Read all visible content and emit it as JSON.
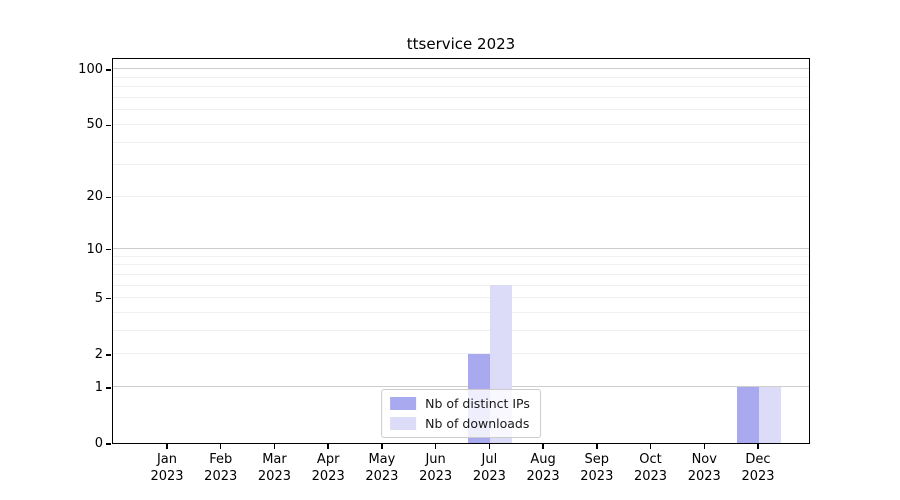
{
  "chart_data": {
    "type": "bar",
    "title": "ttservice 2023",
    "categories": [
      "Jan",
      "Feb",
      "Mar",
      "Apr",
      "May",
      "Jun",
      "Jul",
      "Aug",
      "Sep",
      "Oct",
      "Nov",
      "Dec"
    ],
    "category_year": "2023",
    "series": [
      {
        "name": "Nb of distinct IPs",
        "color": "#a9a9f0",
        "values": [
          0,
          0,
          0,
          0,
          0,
          0,
          2,
          0,
          0,
          0,
          0,
          1
        ]
      },
      {
        "name": "Nb of downloads",
        "color": "#dcdcf8",
        "values": [
          0,
          0,
          0,
          0,
          0,
          0,
          6,
          0,
          0,
          0,
          0,
          1
        ]
      }
    ],
    "yscale": "log1p",
    "ylim": [
      0,
      116
    ],
    "ytick_values": [
      0,
      1,
      2,
      5,
      10,
      20,
      50,
      100
    ],
    "ytick_labels": [
      "0",
      "1",
      "2",
      "5",
      "10",
      "20",
      "50",
      "100"
    ],
    "major_grid_values": [
      1,
      10,
      100
    ],
    "minor_grid_values": [
      2,
      3,
      4,
      5,
      6,
      7,
      8,
      9,
      20,
      30,
      40,
      50,
      60,
      70,
      80,
      90
    ],
    "grid": true,
    "legend_position": "lower center",
    "colors": {
      "spine": "#000000",
      "major_grid": "#cdcdcd",
      "minor_grid": "#efefef",
      "background": "#ffffff"
    }
  }
}
